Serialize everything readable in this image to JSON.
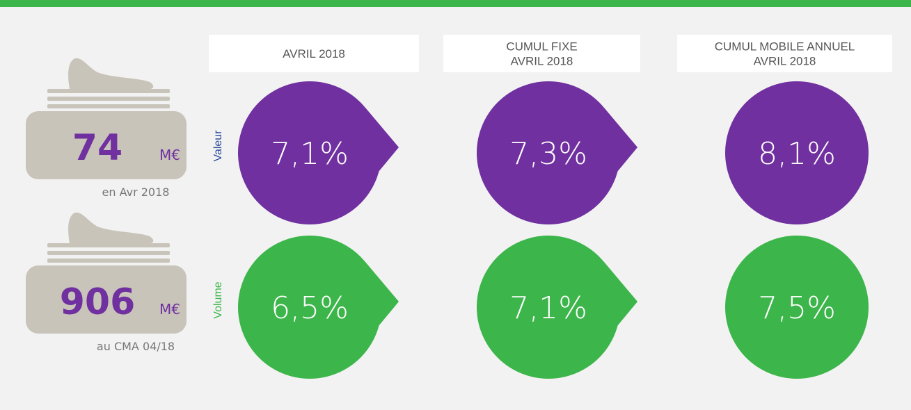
{
  "cards": [
    {
      "value": "74",
      "unit": "M€",
      "caption": "en Avr 2018"
    },
    {
      "value": "906",
      "unit": "M€",
      "caption": "au CMA 04/18"
    }
  ],
  "columns": [
    {
      "lines": [
        "AVRIL 2018"
      ]
    },
    {
      "lines": [
        "CUMUL FIXE",
        "AVRIL 2018"
      ]
    },
    {
      "lines": [
        "CUMUL MOBILE ANNUEL",
        "AVRIL 2018"
      ]
    }
  ],
  "rows": [
    {
      "label": "Valeur",
      "label_color": "#2e4a9c",
      "color": "#7030a0",
      "values": [
        "7,1%",
        "7,3%",
        "8,1%"
      ]
    },
    {
      "label": "Volume",
      "label_color": "#3cb54a",
      "color": "#3cb54a",
      "values": [
        "6,5%",
        "7,1%",
        "7,5%"
      ]
    }
  ]
}
